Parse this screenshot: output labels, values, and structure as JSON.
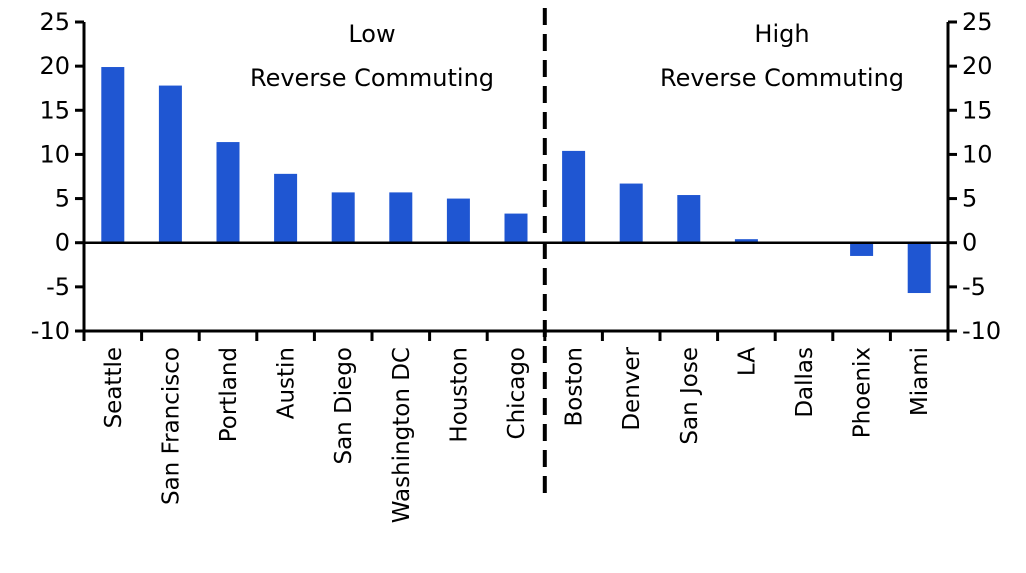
{
  "chart_data": {
    "type": "bar",
    "categories": [
      "Seattle",
      "San Francisco",
      "Portland",
      "Austin",
      "San Diego",
      "Washington DC",
      "Houston",
      "Chicago",
      "Boston",
      "Denver",
      "San Jose",
      "LA",
      "Dallas",
      "Phoenix",
      "Miami"
    ],
    "values": [
      19.9,
      17.8,
      11.4,
      7.8,
      5.7,
      5.7,
      5.0,
      3.3,
      10.4,
      6.7,
      5.4,
      0.4,
      0.0,
      -1.5,
      -5.7
    ],
    "ylim": [
      -10,
      25
    ],
    "yticks": [
      -10,
      -5,
      0,
      5,
      10,
      15,
      20,
      25
    ],
    "ytick_labels": [
      "-10",
      "-5",
      "0",
      "5",
      "10",
      "15",
      "20",
      "25"
    ],
    "bar_color": "#1f56d2",
    "divider_after_index": 7,
    "grid": false,
    "secondary_y_axis": true,
    "annotations": [
      {
        "group": "low",
        "line1": "Low",
        "line2": "Reverse Commuting"
      },
      {
        "group": "high",
        "line1": "High",
        "line2": "Reverse Commuting"
      }
    ]
  }
}
